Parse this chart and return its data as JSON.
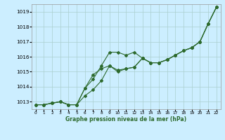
{
  "s1": [
    1012.8,
    1012.8,
    1012.9,
    1013.0,
    1012.8,
    1012.8,
    1013.9,
    1014.8,
    1015.2,
    1015.4,
    1015.1,
    1015.2,
    1015.3,
    1015.9,
    1015.6,
    1015.6,
    1015.8,
    1016.1,
    1016.4,
    1016.6,
    1017.0,
    1018.2,
    1019.3
  ],
  "s2": [
    1012.8,
    1012.8,
    1012.9,
    1013.0,
    1012.8,
    1012.8,
    1013.9,
    1014.5,
    1015.4,
    1016.3,
    1016.3,
    1016.1,
    1016.3,
    1015.9,
    1015.6,
    1015.6,
    1015.8,
    1016.1,
    1016.4,
    1016.6,
    1017.0,
    1018.2,
    1019.3
  ],
  "s3": [
    1012.8,
    1012.8,
    1012.9,
    1013.0,
    1012.8,
    1012.8,
    1013.4,
    1013.8,
    1014.4,
    1015.4,
    1015.0,
    1015.2,
    1015.3,
    1015.9,
    1015.6,
    1015.6,
    1015.8,
    1016.1,
    1016.4,
    1016.6,
    1017.0,
    1018.2,
    1019.3
  ],
  "x_max": 22,
  "ylim": [
    1012.5,
    1019.5
  ],
  "yticks": [
    1013,
    1014,
    1015,
    1016,
    1017,
    1018,
    1019
  ],
  "xlabel": "Graphe pression niveau de la mer (hPa)",
  "line_color": "#2d6a2d",
  "bg_color": "#cceeff",
  "grid_color": "#aacfcf"
}
